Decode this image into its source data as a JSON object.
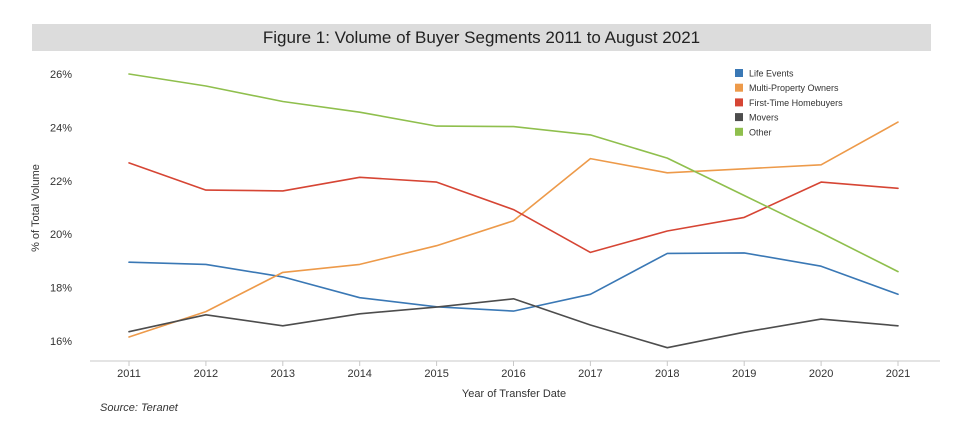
{
  "chart_data": {
    "type": "line",
    "title": "Figure 1: Volume of Buyer Segments 2011 to August 2021",
    "xlabel": "Year of Transfer Date",
    "ylabel": "% of Total Volume",
    "x": [
      2011,
      2012,
      2013,
      2014,
      2015,
      2016,
      2017,
      2018,
      2019,
      2020,
      2021
    ],
    "ylim": [
      15.5,
      26.5
    ],
    "yticks": [
      16,
      18,
      20,
      22,
      24,
      26
    ],
    "ytick_labels": [
      "16%",
      "18%",
      "20%",
      "22%",
      "24%",
      "26%"
    ],
    "xtick_labels": [
      "2011",
      "2012",
      "2013",
      "2014",
      "2015",
      "2016",
      "2017",
      "2018",
      "2019",
      "2020",
      "2021"
    ],
    "grid": false,
    "legend_position": "top-right",
    "series": [
      {
        "name": "Life Events",
        "color": "#3a78b5",
        "values": [
          18.95,
          18.87,
          18.4,
          17.62,
          17.28,
          17.12,
          17.75,
          19.28,
          19.3,
          18.8,
          17.75
        ]
      },
      {
        "name": "Multi-Property Owners",
        "color": "#ed9a4a",
        "values": [
          16.15,
          17.1,
          18.57,
          18.87,
          19.57,
          20.5,
          22.83,
          22.3,
          22.45,
          22.6,
          24.2
        ]
      },
      {
        "name": "First-Time Homebuyers",
        "color": "#d64534",
        "values": [
          22.67,
          21.65,
          21.62,
          22.13,
          21.95,
          20.92,
          19.32,
          20.12,
          20.63,
          21.95,
          21.72
        ]
      },
      {
        "name": "Movers",
        "color": "#4d4d4d",
        "values": [
          16.35,
          16.98,
          16.57,
          17.02,
          17.27,
          17.58,
          16.6,
          15.75,
          16.33,
          16.82,
          16.57
        ]
      },
      {
        "name": "Other",
        "color": "#8fbf4d",
        "values": [
          26.0,
          25.55,
          24.97,
          24.57,
          24.05,
          24.03,
          23.72,
          22.85,
          21.45,
          20.05,
          18.6
        ]
      }
    ]
  },
  "source": "Source: Teranet"
}
